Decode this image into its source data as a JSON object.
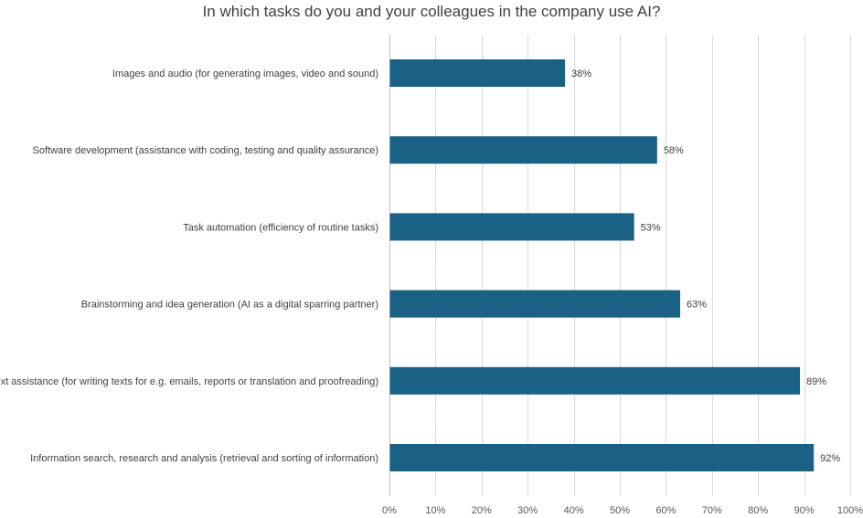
{
  "chart_data": {
    "type": "bar",
    "orientation": "horizontal",
    "title": "In which tasks do you and your colleagues in the company use AI?",
    "categories": [
      "Images and audio (for generating images, video and sound)",
      "Software development (assistance with coding, testing and quality assurance)",
      "Task automation (efficiency of routine tasks)",
      "Brainstorming and idea generation (AI as a digital sparring partner)",
      "Text assistance (for writing texts for e.g. emails, reports or translation and proofreading)",
      "Information search, research and analysis (retrieval and sorting of information)"
    ],
    "values": [
      38,
      58,
      53,
      63,
      89,
      92
    ],
    "data_labels": [
      "38%",
      "58%",
      "53%",
      "63%",
      "89%",
      "92%"
    ],
    "xlim": [
      0,
      100
    ],
    "xticks": [
      0,
      10,
      20,
      30,
      40,
      50,
      60,
      70,
      80,
      90,
      100
    ],
    "xtick_labels": [
      "0%",
      "10%",
      "20%",
      "30%",
      "40%",
      "50%",
      "60%",
      "70%",
      "80%",
      "90%",
      "100%"
    ],
    "xlabel": "",
    "ylabel": "",
    "grid": "vertical",
    "legend": "none",
    "bar_color": "#1b6185"
  }
}
